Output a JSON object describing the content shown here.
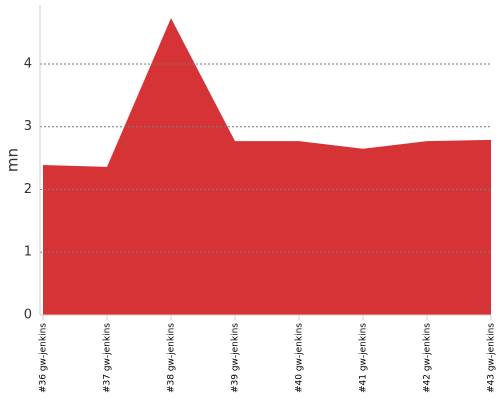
{
  "chart_data": {
    "type": "area",
    "y_label": "mn",
    "categories": [
      "#36 gw-jenkins",
      "#37 gw-jenkins",
      "#38 gw-jenkins",
      "#39 gw-jenkins",
      "#40 gw-jenkins",
      "#41 gw-jenkins",
      "#42 gw-jenkins",
      "#43 gw-jenkins"
    ],
    "values": [
      2.39,
      2.36,
      4.73,
      2.77,
      2.77,
      2.65,
      2.77,
      2.79
    ],
    "color": "#d63337",
    "ylim": [
      0,
      4.94
    ],
    "yticks": [
      0,
      1,
      2,
      3,
      4
    ],
    "grid": true
  }
}
